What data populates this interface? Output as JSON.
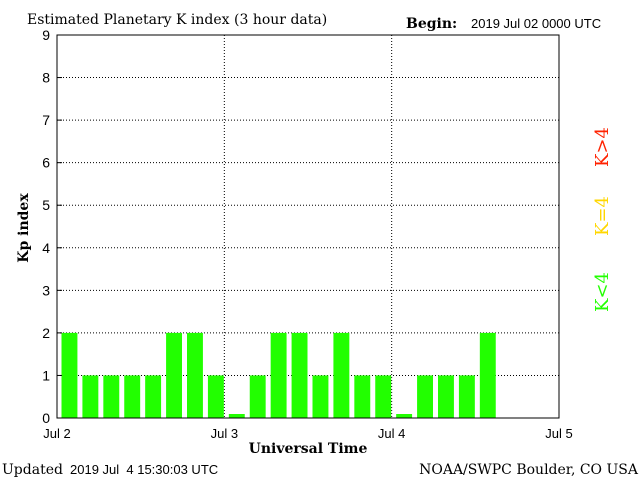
{
  "chart_data": {
    "type": "bar",
    "title": "Estimated Planetary K index (3 hour data)",
    "begin_label": "Begin:",
    "begin_value": "2019 Jul 02 0000 UTC",
    "xlabel": "Universal Time",
    "ylabel": "Kp index",
    "ylim": [
      0,
      9
    ],
    "yticks": [
      "0",
      "1",
      "2",
      "3",
      "4",
      "5",
      "6",
      "7",
      "8",
      "9"
    ],
    "xticks": [
      "Jul 2",
      "Jul 3",
      "Jul 4",
      "Jul 5"
    ],
    "slots_total": 24,
    "values": [
      2,
      1,
      1,
      1,
      1,
      2,
      2,
      1,
      0,
      1,
      2,
      2,
      1,
      2,
      1,
      1,
      0,
      1,
      1,
      1,
      2
    ],
    "grid": true,
    "legend": [
      {
        "label": "K>4",
        "color": "#ff2200"
      },
      {
        "label": "K=4",
        "color": "#ffd700"
      },
      {
        "label": "K<4",
        "color": "#22ff00"
      }
    ],
    "bar_color": "#22ff00"
  },
  "footer": {
    "updated_label": "Updated",
    "updated_value": "2019 Jul  4 15:30:03 UTC",
    "source": "NOAA/SWPC Boulder, CO USA"
  }
}
